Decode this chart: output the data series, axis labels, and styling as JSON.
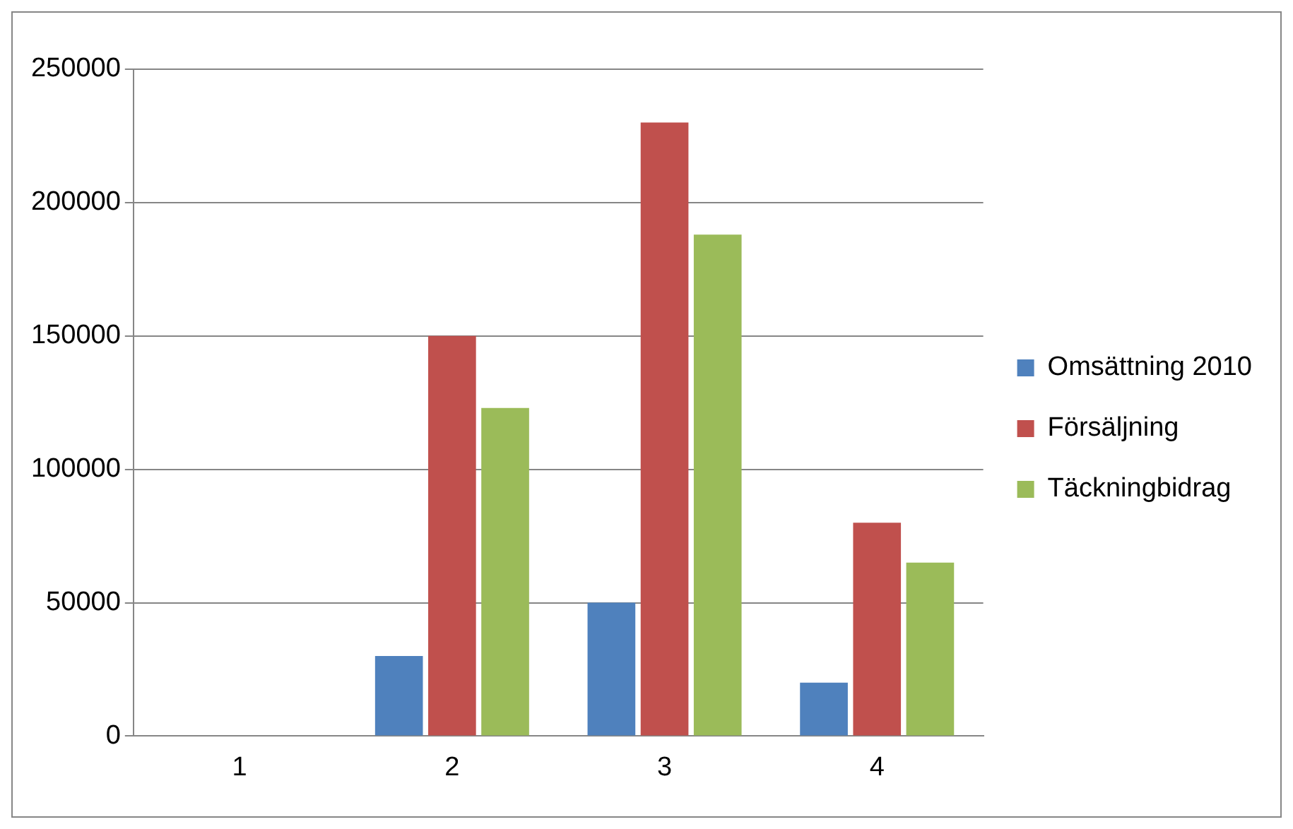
{
  "chart_data": {
    "type": "bar",
    "categories": [
      "1",
      "2",
      "3",
      "4"
    ],
    "series": [
      {
        "name": "Omsättning 2010",
        "color": "#4f81bd",
        "values": [
          0,
          30000,
          50000,
          20000
        ]
      },
      {
        "name": "Försäljning",
        "color": "#c0504d",
        "values": [
          0,
          150000,
          230000,
          80000
        ]
      },
      {
        "name": "Täckningbidrag",
        "color": "#9bbb59",
        "values": [
          0,
          123000,
          188000,
          65000
        ]
      }
    ],
    "ylim": [
      0,
      250000
    ],
    "yticks": [
      0,
      50000,
      100000,
      150000,
      200000,
      250000
    ],
    "grid": "y",
    "legend": "right"
  }
}
